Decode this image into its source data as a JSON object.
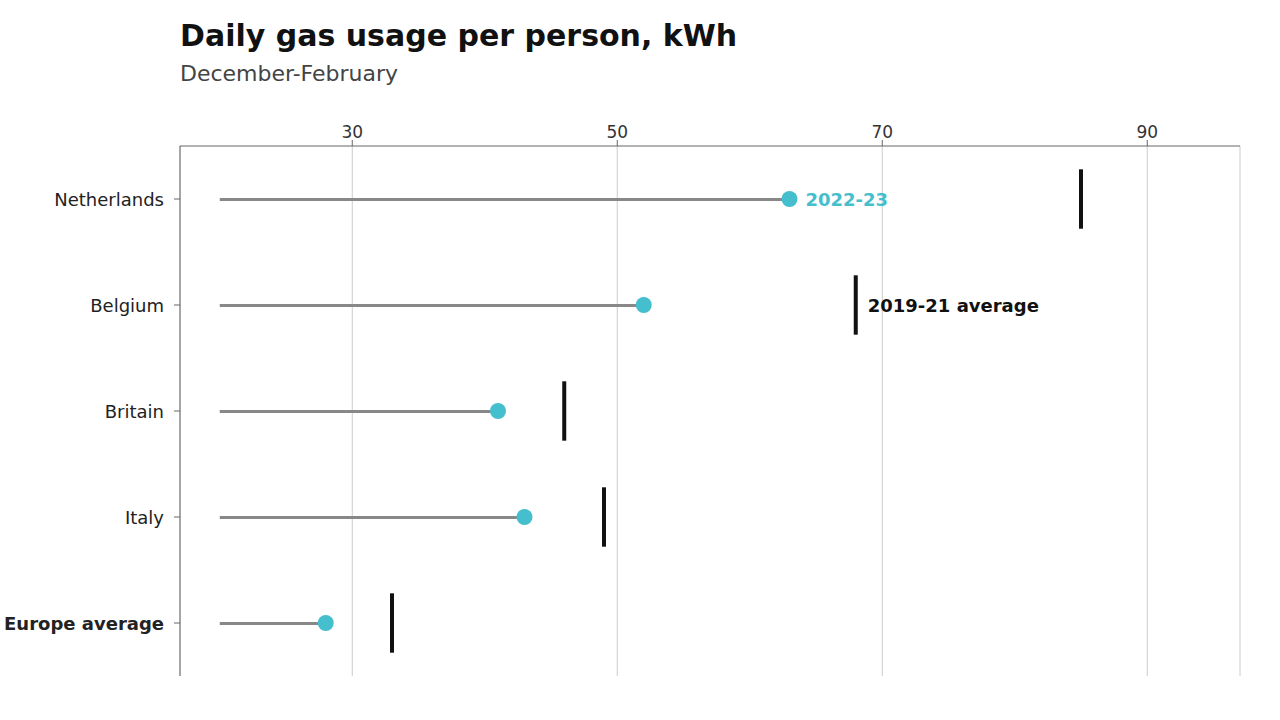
{
  "chart_data": {
    "type": "dot",
    "title": "Daily gas usage per person, kWh",
    "subtitle": "December-February",
    "orientation": "horizontal",
    "categories": [
      "Netherlands",
      "Belgium",
      "Britain",
      "Italy",
      "Europe average"
    ],
    "series": [
      {
        "name": "2022-23",
        "color": "#45bece",
        "marker": "circle",
        "values": [
          63,
          52,
          41,
          43,
          28
        ]
      },
      {
        "name": "2019-21 average",
        "color": "#111111",
        "marker": "line",
        "values": [
          85,
          68,
          46,
          49,
          33
        ]
      }
    ],
    "line_start": 20,
    "line_color": "#888888",
    "xlim": [
      17,
      97
    ],
    "xticks": [
      30,
      50,
      70,
      90
    ],
    "grid": true,
    "annotations": [
      {
        "text": "2022-23",
        "category": "Netherlands"
      },
      {
        "text": "2019-21 average",
        "category": "Belgium"
      }
    ]
  }
}
